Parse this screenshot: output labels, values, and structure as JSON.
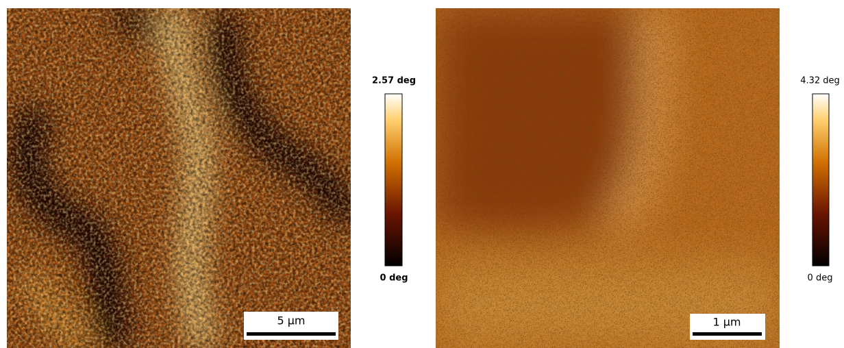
{
  "panels": [
    {
      "scale_bar": "5 µm",
      "colorbar": {
        "max": "2.57 deg",
        "min": "0 deg"
      }
    },
    {
      "scale_bar": "1 µm",
      "colorbar": {
        "max": "4.32 deg",
        "min": "0 deg"
      }
    }
  ]
}
